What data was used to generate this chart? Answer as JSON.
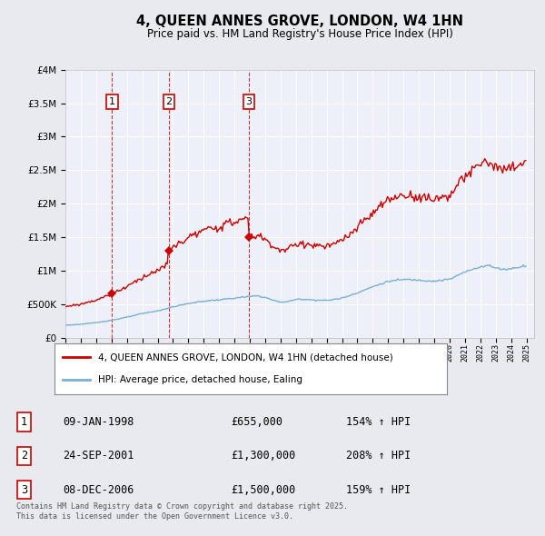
{
  "title": "4, QUEEN ANNES GROVE, LONDON, W4 1HN",
  "subtitle": "Price paid vs. HM Land Registry's House Price Index (HPI)",
  "legend_label_red": "4, QUEEN ANNES GROVE, LONDON, W4 1HN (detached house)",
  "legend_label_blue": "HPI: Average price, detached house, Ealing",
  "sales": [
    {
      "num": 1,
      "date": "09-JAN-1998",
      "price": 655000,
      "year": 1998.04,
      "hpi_pct": "154% ↑ HPI"
    },
    {
      "num": 2,
      "date": "24-SEP-2001",
      "price": 1300000,
      "year": 2001.73,
      "hpi_pct": "208% ↑ HPI"
    },
    {
      "num": 3,
      "date": "08-DEC-2006",
      "price": 1500000,
      "year": 2006.93,
      "hpi_pct": "159% ↑ HPI"
    }
  ],
  "footer": "Contains HM Land Registry data © Crown copyright and database right 2025.\nThis data is licensed under the Open Government Licence v3.0.",
  "ylim": [
    0,
    4000000
  ],
  "xlim": [
    1995.0,
    2025.5
  ],
  "bg_color": "#e8eaf0",
  "plot_bg_color": "#edf0f8",
  "red_color": "#cc0000",
  "blue_color": "#7ab0d4",
  "grid_color": "#ffffff"
}
